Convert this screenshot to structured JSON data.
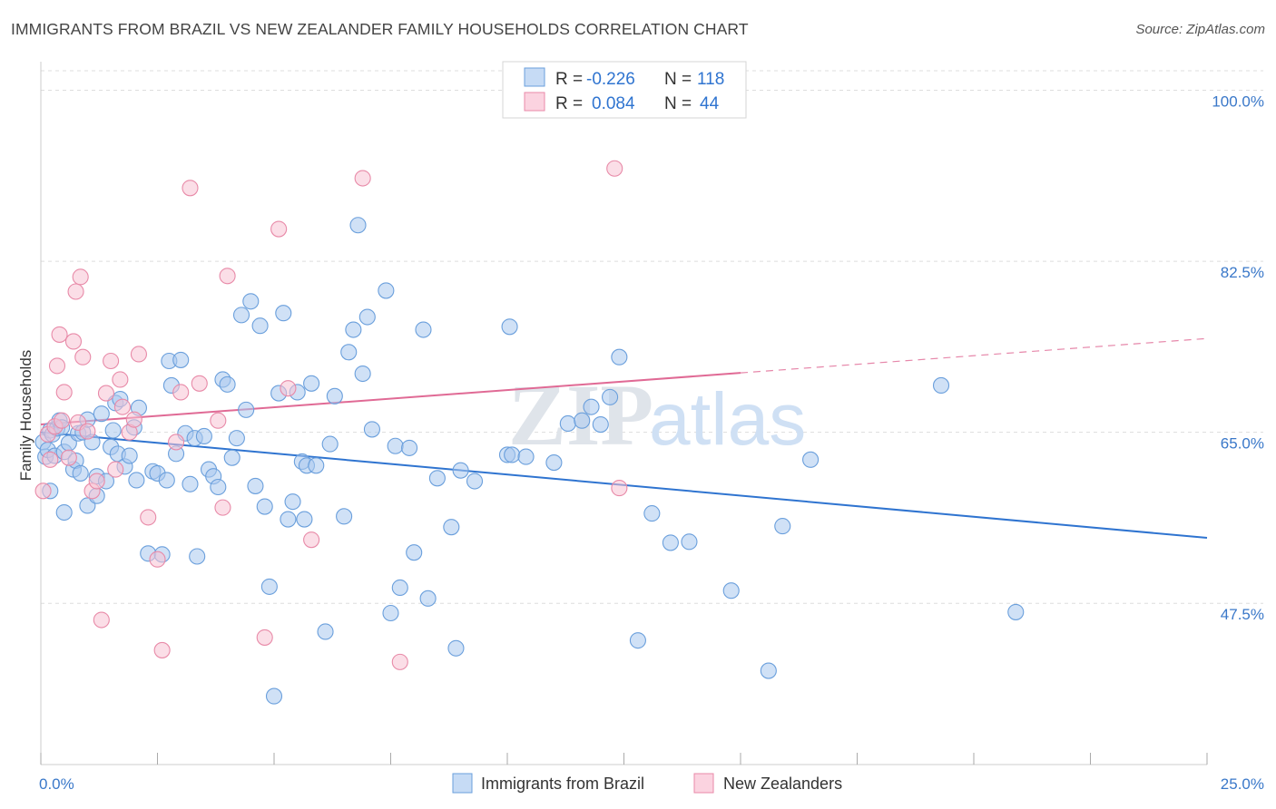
{
  "title": "IMMIGRANTS FROM BRAZIL VS NEW ZEALANDER FAMILY HOUSEHOLDS CORRELATION CHART",
  "source": "Source: ZipAtlas.com",
  "watermark": {
    "zip": "ZIP",
    "atlas": "atlas"
  },
  "colors": {
    "blue_fill": "#aac8ee",
    "blue_stroke": "#6a9fdc",
    "blue_line": "#2f74d0",
    "pink_fill": "#f7c2d3",
    "pink_stroke": "#e88aa8",
    "pink_line": "#e06a95",
    "axis_label": "#3a78c9",
    "grid": "#dddddd"
  },
  "legend": {
    "rows": [
      {
        "r_label": "R = ",
        "r_value": "-0.226",
        "n_label": "N = ",
        "n_value": "118"
      },
      {
        "r_label": "R = ",
        "r_value": "0.084",
        "n_label": "N = ",
        "n_value": "44"
      }
    ]
  },
  "chart_data": {
    "type": "scatter",
    "xlabel": "",
    "ylabel": "Family Households",
    "xlim": [
      0,
      25
    ],
    "ylim": [
      31,
      102
    ],
    "x_ticks": [
      {
        "value": 0,
        "label": "0.0%"
      },
      {
        "value": 25,
        "label": "25.0%"
      }
    ],
    "y_ticks": [
      {
        "value": 100,
        "label": "100.0%"
      },
      {
        "value": 82.5,
        "label": "82.5%"
      },
      {
        "value": 65,
        "label": "65.0%"
      },
      {
        "value": 47.5,
        "label": "47.5%"
      }
    ],
    "grid": true,
    "legend_position": "bottom",
    "series": [
      {
        "name": "Immigrants from Brazil",
        "trend": {
          "x": [
            0,
            25
          ],
          "y": [
            65.0,
            54.2
          ],
          "solid_until": 25
        },
        "points": [
          [
            0.05,
            64.0
          ],
          [
            0.1,
            62.5
          ],
          [
            0.15,
            63.2
          ],
          [
            0.2,
            65.2
          ],
          [
            0.25,
            64.8
          ],
          [
            0.3,
            62.6
          ],
          [
            0.35,
            65.4
          ],
          [
            0.4,
            66.2
          ],
          [
            0.45,
            65.5
          ],
          [
            0.5,
            63.0
          ],
          [
            0.6,
            63.9
          ],
          [
            0.7,
            61.2
          ],
          [
            0.75,
            62.1
          ],
          [
            0.8,
            64.9
          ],
          [
            0.85,
            60.8
          ],
          [
            0.9,
            65.0
          ],
          [
            1.0,
            66.3
          ],
          [
            1.1,
            64.0
          ],
          [
            1.2,
            60.5
          ],
          [
            1.3,
            66.9
          ],
          [
            1.4,
            60.0
          ],
          [
            1.5,
            63.5
          ],
          [
            1.55,
            65.2
          ],
          [
            1.6,
            68.0
          ],
          [
            1.65,
            62.8
          ],
          [
            1.7,
            68.4
          ],
          [
            1.8,
            61.5
          ],
          [
            1.9,
            62.6
          ],
          [
            2.0,
            65.5
          ],
          [
            2.05,
            60.1
          ],
          [
            2.1,
            67.5
          ],
          [
            2.3,
            52.6
          ],
          [
            2.4,
            61.0
          ],
          [
            2.5,
            60.8
          ],
          [
            2.6,
            52.5
          ],
          [
            2.7,
            60.1
          ],
          [
            2.75,
            72.3
          ],
          [
            2.8,
            69.8
          ],
          [
            2.9,
            62.8
          ],
          [
            3.0,
            72.4
          ],
          [
            3.1,
            64.9
          ],
          [
            3.2,
            59.7
          ],
          [
            3.3,
            64.4
          ],
          [
            3.35,
            52.3
          ],
          [
            3.5,
            64.6
          ],
          [
            3.6,
            61.2
          ],
          [
            3.7,
            60.5
          ],
          [
            3.8,
            59.4
          ],
          [
            3.9,
            70.4
          ],
          [
            4.0,
            69.9
          ],
          [
            4.1,
            62.4
          ],
          [
            4.2,
            64.4
          ],
          [
            4.3,
            77.0
          ],
          [
            4.4,
            67.3
          ],
          [
            4.5,
            78.4
          ],
          [
            4.6,
            59.5
          ],
          [
            4.7,
            75.9
          ],
          [
            4.8,
            57.4
          ],
          [
            4.9,
            49.2
          ],
          [
            5.0,
            38.0
          ],
          [
            5.1,
            69.0
          ],
          [
            5.2,
            77.2
          ],
          [
            5.3,
            56.1
          ],
          [
            5.4,
            57.9
          ],
          [
            5.5,
            69.1
          ],
          [
            5.6,
            62.0
          ],
          [
            5.65,
            56.1
          ],
          [
            5.7,
            61.6
          ],
          [
            5.8,
            70.0
          ],
          [
            5.9,
            61.6
          ],
          [
            6.1,
            44.6
          ],
          [
            6.2,
            63.8
          ],
          [
            6.3,
            68.7
          ],
          [
            6.5,
            56.4
          ],
          [
            6.6,
            73.2
          ],
          [
            6.7,
            75.5
          ],
          [
            6.8,
            86.2
          ],
          [
            6.9,
            71.0
          ],
          [
            7.0,
            76.8
          ],
          [
            7.1,
            65.3
          ],
          [
            7.4,
            79.5
          ],
          [
            7.5,
            46.5
          ],
          [
            7.6,
            63.6
          ],
          [
            7.7,
            49.1
          ],
          [
            7.9,
            63.4
          ],
          [
            8.0,
            52.7
          ],
          [
            8.2,
            75.5
          ],
          [
            8.3,
            48.0
          ],
          [
            8.5,
            60.3
          ],
          [
            8.8,
            55.3
          ],
          [
            8.9,
            42.9
          ],
          [
            9.0,
            61.1
          ],
          [
            9.3,
            60.0
          ],
          [
            10.0,
            62.7
          ],
          [
            10.05,
            75.8
          ],
          [
            10.1,
            62.7
          ],
          [
            10.4,
            62.5
          ],
          [
            11.0,
            61.9
          ],
          [
            11.3,
            65.9
          ],
          [
            11.6,
            66.2
          ],
          [
            11.8,
            67.6
          ],
          [
            12.0,
            65.8
          ],
          [
            12.2,
            68.6
          ],
          [
            12.4,
            72.7
          ],
          [
            12.8,
            43.7
          ],
          [
            13.1,
            56.7
          ],
          [
            13.5,
            53.7
          ],
          [
            13.9,
            53.8
          ],
          [
            14.8,
            48.8
          ],
          [
            15.6,
            40.6
          ],
          [
            15.9,
            55.4
          ],
          [
            16.5,
            62.2
          ],
          [
            19.3,
            69.8
          ],
          [
            20.9,
            46.6
          ],
          [
            0.2,
            59.0
          ],
          [
            0.5,
            56.8
          ],
          [
            1.0,
            57.5
          ],
          [
            1.2,
            58.5
          ]
        ]
      },
      {
        "name": "New Zealanders",
        "trend": {
          "x": [
            0,
            25
          ],
          "y": [
            65.8,
            74.6
          ],
          "solid_until": 15
        },
        "points": [
          [
            0.05,
            59.0
          ],
          [
            0.15,
            64.8
          ],
          [
            0.2,
            62.2
          ],
          [
            0.3,
            65.6
          ],
          [
            0.35,
            71.8
          ],
          [
            0.4,
            75.0
          ],
          [
            0.45,
            66.2
          ],
          [
            0.5,
            69.1
          ],
          [
            0.6,
            62.4
          ],
          [
            0.7,
            74.3
          ],
          [
            0.75,
            79.4
          ],
          [
            0.8,
            66.0
          ],
          [
            0.85,
            80.9
          ],
          [
            0.9,
            72.7
          ],
          [
            1.0,
            65.1
          ],
          [
            1.1,
            59.0
          ],
          [
            1.2,
            60.0
          ],
          [
            1.3,
            45.8
          ],
          [
            1.4,
            69.0
          ],
          [
            1.5,
            72.3
          ],
          [
            1.6,
            61.2
          ],
          [
            1.7,
            70.4
          ],
          [
            1.75,
            67.6
          ],
          [
            1.9,
            65.0
          ],
          [
            2.0,
            66.3
          ],
          [
            2.1,
            73.0
          ],
          [
            2.3,
            56.3
          ],
          [
            2.5,
            52.0
          ],
          [
            2.6,
            42.7
          ],
          [
            2.9,
            64.0
          ],
          [
            3.0,
            69.1
          ],
          [
            3.2,
            90.0
          ],
          [
            3.4,
            70.0
          ],
          [
            3.8,
            66.2
          ],
          [
            3.9,
            57.3
          ],
          [
            4.0,
            81.0
          ],
          [
            4.8,
            44.0
          ],
          [
            5.1,
            85.8
          ],
          [
            5.3,
            69.5
          ],
          [
            5.8,
            54.0
          ],
          [
            6.9,
            91.0
          ],
          [
            7.7,
            41.5
          ],
          [
            12.3,
            92.0
          ],
          [
            12.4,
            59.3
          ]
        ]
      }
    ]
  }
}
